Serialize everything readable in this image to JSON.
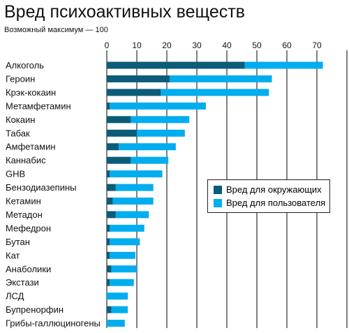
{
  "title": "Вред психоактивных веществ",
  "subtitle": "Возможный максимум — 100",
  "colors": {
    "others": "#0b5c78",
    "user": "#00adef",
    "grid": "#000000"
  },
  "chart_data": {
    "type": "bar",
    "orientation": "horizontal",
    "stacked": true,
    "xlim": [
      0,
      80
    ],
    "xticks": [
      0,
      10,
      20,
      30,
      40,
      50,
      60,
      70
    ],
    "legend_position": "right",
    "categories": [
      "Алкоголь",
      "Героин",
      "Крэк-кокаин",
      "Метамфетамин",
      "Кокаин",
      "Табак",
      "Амфетамин",
      "Каннабис",
      "GHB",
      "Бензодиазепины",
      "Кетамин",
      "Метадон",
      "Мефедрон",
      "Бутан",
      "Кат",
      "Анаболики",
      "Экстази",
      "ЛСД",
      "Бупренорфин",
      "Грибы-галлюциногены"
    ],
    "series": [
      {
        "name": "Вред для окружающих",
        "values": [
          46,
          21,
          18,
          1,
          8,
          10,
          4,
          8,
          1,
          3,
          2,
          3,
          1,
          1,
          1,
          1.5,
          1,
          0,
          1.5,
          0
        ]
      },
      {
        "name": "Вред для пользователя",
        "values": [
          26,
          34,
          36,
          32,
          19.5,
          16,
          19,
          12.5,
          17.5,
          12.5,
          13.5,
          11,
          11.5,
          10,
          8.5,
          8.5,
          8,
          7,
          5.5,
          6
        ]
      }
    ]
  }
}
